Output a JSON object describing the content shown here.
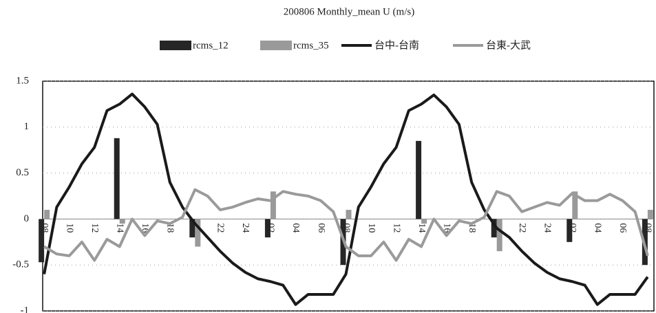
{
  "chart_data": {
    "type": "bar",
    "title": "200806 Monthly_mean U (m/s)",
    "categories": [
      "08",
      null,
      "10",
      null,
      "12",
      null,
      "14",
      null,
      "16",
      null,
      "18",
      null,
      "20",
      null,
      "22",
      null,
      "24",
      null,
      "02",
      null,
      "04",
      null,
      "06",
      null,
      "08",
      null,
      "10",
      null,
      "12",
      null,
      "14",
      null,
      "16",
      null,
      "18",
      null,
      "20",
      null,
      "22",
      null,
      "24",
      null,
      "02",
      null,
      "04",
      null,
      "06",
      null,
      "08"
    ],
    "series": [
      {
        "name": "rcms_12",
        "type": "bar",
        "color": "#262626",
        "values": [
          -0.47,
          null,
          null,
          null,
          null,
          null,
          0.88,
          null,
          null,
          null,
          null,
          null,
          -0.2,
          null,
          null,
          null,
          null,
          null,
          -0.2,
          null,
          null,
          null,
          null,
          null,
          -0.5,
          null,
          null,
          null,
          null,
          null,
          0.85,
          null,
          null,
          null,
          null,
          null,
          -0.2,
          null,
          null,
          null,
          null,
          null,
          -0.25,
          null,
          null,
          null,
          null,
          null,
          -0.5
        ]
      },
      {
        "name": "rcms_35",
        "type": "bar",
        "color": "#9a9a9a",
        "values": [
          0.1,
          null,
          null,
          null,
          null,
          null,
          -0.05,
          null,
          null,
          null,
          null,
          null,
          -0.3,
          null,
          null,
          null,
          null,
          null,
          0.3,
          null,
          null,
          null,
          null,
          null,
          0.1,
          null,
          null,
          null,
          null,
          null,
          -0.05,
          null,
          null,
          null,
          null,
          null,
          -0.35,
          null,
          null,
          null,
          null,
          null,
          0.3,
          null,
          null,
          null,
          null,
          null,
          0.1
        ]
      },
      {
        "name": "台中-台南",
        "type": "line",
        "color": "#1a1a1a",
        "values": [
          -0.6,
          0.13,
          0.35,
          0.6,
          0.78,
          1.18,
          1.25,
          1.36,
          1.22,
          1.03,
          0.4,
          0.13,
          -0.05,
          -0.2,
          -0.35,
          -0.48,
          -0.58,
          -0.65,
          -0.68,
          -0.72,
          -0.93,
          -0.82,
          -0.82,
          -0.82,
          -0.6,
          0.13,
          0.35,
          0.6,
          0.78,
          1.18,
          1.25,
          1.35,
          1.22,
          1.03,
          0.4,
          0.1,
          -0.1,
          -0.2,
          -0.35,
          -0.48,
          -0.58,
          -0.65,
          -0.68,
          -0.72,
          -0.93,
          -0.82,
          -0.82,
          -0.82,
          -0.63
        ]
      },
      {
        "name": "台東-大武",
        "type": "line",
        "color": "#9a9a9a",
        "values": [
          -0.3,
          -0.38,
          -0.4,
          -0.25,
          -0.45,
          -0.22,
          -0.3,
          0.0,
          -0.18,
          -0.02,
          -0.05,
          0.02,
          0.32,
          0.25,
          0.1,
          0.13,
          0.18,
          0.22,
          0.2,
          0.3,
          0.27,
          0.25,
          0.2,
          0.08,
          -0.3,
          -0.4,
          -0.4,
          -0.25,
          -0.45,
          -0.22,
          -0.3,
          0.0,
          -0.18,
          -0.02,
          -0.05,
          0.02,
          0.3,
          0.25,
          0.08,
          0.13,
          0.18,
          0.15,
          0.28,
          0.2,
          0.2,
          0.27,
          0.2,
          0.08,
          -0.4
        ]
      }
    ],
    "ylim": [
      -1,
      1.5
    ],
    "yticks": [
      -1,
      -0.5,
      0,
      0.5,
      1,
      1.5
    ],
    "grid": true
  }
}
